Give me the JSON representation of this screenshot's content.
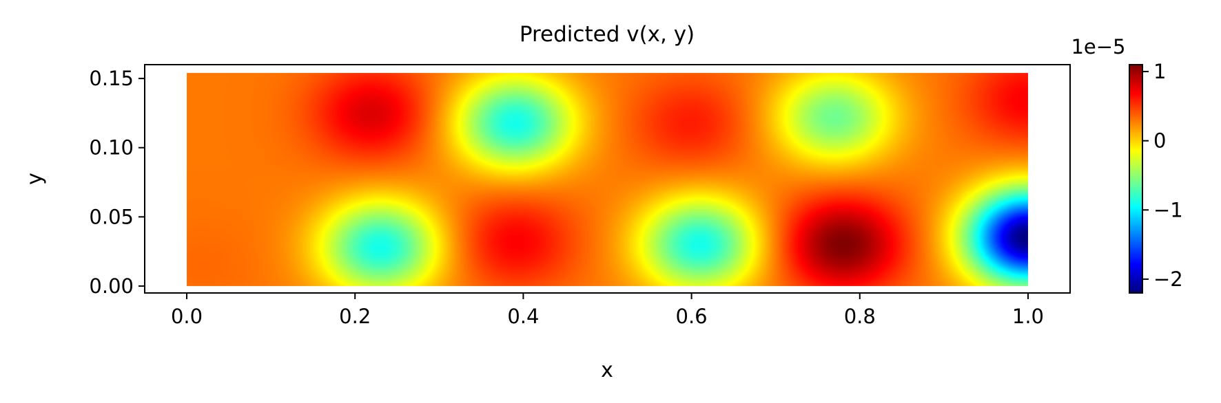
{
  "chart_data": {
    "type": "heatmap",
    "title": "Predicted v(x, y)",
    "xlabel": "x",
    "ylabel": "y",
    "xlim": [
      -0.05,
      1.05
    ],
    "ylim": [
      -0.005,
      0.16
    ],
    "x_ticks": [
      0.0,
      0.2,
      0.4,
      0.6,
      0.8,
      1.0
    ],
    "x_tick_labels": [
      "0.0",
      "0.2",
      "0.4",
      "0.6",
      "0.8",
      "1.0"
    ],
    "y_ticks": [
      0.0,
      0.05,
      0.1,
      0.15
    ],
    "y_tick_labels": [
      "0.00",
      "0.05",
      "0.10",
      "0.15"
    ],
    "data_extent": {
      "x": [
        0.0,
        1.0
      ],
      "y": [
        0.0,
        0.154
      ]
    },
    "colormap": "jet",
    "colorbar": {
      "range": [
        -2.2,
        1.1
      ],
      "ticks": [
        1,
        0,
        -1,
        -2
      ],
      "tick_labels": [
        "1",
        "0",
        "−1",
        "−2"
      ],
      "offset_label": "1e−5"
    },
    "base_value": 0.3,
    "features": [
      {
        "x": 0.22,
        "y": 0.125,
        "value": 0.8
      },
      {
        "x": 0.23,
        "y": 0.028,
        "value": -0.9
      },
      {
        "x": 0.39,
        "y": 0.118,
        "value": -0.9
      },
      {
        "x": 0.39,
        "y": 0.032,
        "value": 0.7
      },
      {
        "x": 0.6,
        "y": 0.118,
        "value": 0.6
      },
      {
        "x": 0.61,
        "y": 0.03,
        "value": -0.9
      },
      {
        "x": 0.77,
        "y": 0.122,
        "value": -0.6
      },
      {
        "x": 0.78,
        "y": 0.03,
        "value": 1.1
      },
      {
        "x": 1.0,
        "y": 0.035,
        "value": -2.2
      },
      {
        "x": 1.0,
        "y": 0.135,
        "value": 0.7
      },
      {
        "x": 0.02,
        "y": 0.015,
        "value": 0.35
      }
    ]
  }
}
